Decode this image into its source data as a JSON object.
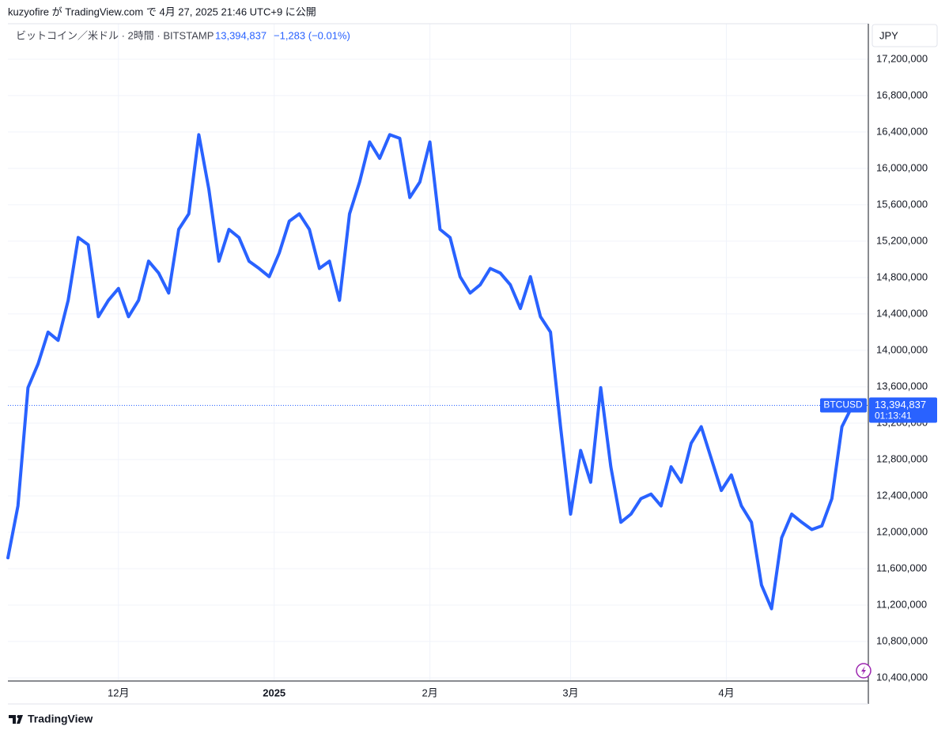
{
  "chart_data": {
    "type": "line",
    "title": "kuzyofire が TradingView.com で 4月 27, 2025 21:46 UTC+9 に公開",
    "subtitle": "ビットコイン／米ドル · 2時間 · BITSTAMP",
    "last_price": {
      "value": 13394837,
      "label": "13,394,837"
    },
    "change": "−1,283 (−0.01%)",
    "countdown": "01:13:41",
    "currency": "JPY",
    "footer": "TradingView",
    "series": [
      {
        "name": "BTCUSD",
        "color": "#2962ff",
        "values": [
          11720000,
          12290000,
          13590000,
          13850000,
          14200000,
          14110000,
          14550000,
          15240000,
          15160000,
          14370000,
          14550000,
          14680000,
          14370000,
          14550000,
          14980000,
          14850000,
          14630000,
          15330000,
          15500000,
          16370000,
          15770000,
          14980000,
          15330000,
          15240000,
          14980000,
          14900000,
          14810000,
          15070000,
          15420000,
          15500000,
          15330000,
          14900000,
          14980000,
          14550000,
          15500000,
          15850000,
          16290000,
          16110000,
          16370000,
          16330000,
          15680000,
          15850000,
          16290000,
          15330000,
          15240000,
          14810000,
          14630000,
          14720000,
          14900000,
          14850000,
          14720000,
          14460000,
          14810000,
          14370000,
          14200000,
          13160000,
          12200000,
          12900000,
          12550000,
          13590000,
          12720000,
          12110000,
          12200000,
          12370000,
          12420000,
          12290000,
          12720000,
          12550000,
          12980000,
          13160000,
          12810000,
          12460000,
          12630000,
          12290000,
          12110000,
          11420000,
          11160000,
          11940000,
          12200000,
          12110000,
          12030000,
          12070000,
          12370000,
          13160000,
          13380000,
          13394837
        ]
      }
    ],
    "xlim": [
      0,
      85
    ],
    "xticks": [
      {
        "value": 11,
        "label": "12月"
      },
      {
        "value": 26.5,
        "label": "2025"
      },
      {
        "value": 42,
        "label": "2月"
      },
      {
        "value": 56,
        "label": "3月"
      },
      {
        "value": 71.5,
        "label": "4月"
      }
    ],
    "ylim": [
      10374000,
      17590000
    ],
    "yticks": [
      {
        "value": 10400000,
        "label": "10,400,000"
      },
      {
        "value": 10800000,
        "label": "10,800,000"
      },
      {
        "value": 11200000,
        "label": "11,200,000"
      },
      {
        "value": 11600000,
        "label": "11,600,000"
      },
      {
        "value": 12000000,
        "label": "12,000,000"
      },
      {
        "value": 12400000,
        "label": "12,400,000"
      },
      {
        "value": 12800000,
        "label": "12,800,000"
      },
      {
        "value": 13200000,
        "label": "13,200,000"
      },
      {
        "value": 13600000,
        "label": "13,600,000"
      },
      {
        "value": 14000000,
        "label": "14,000,000"
      },
      {
        "value": 14400000,
        "label": "14,400,000"
      },
      {
        "value": 14800000,
        "label": "14,800,000"
      },
      {
        "value": 15200000,
        "label": "15,200,000"
      },
      {
        "value": 15600000,
        "label": "15,600,000"
      },
      {
        "value": 16000000,
        "label": "16,000,000"
      },
      {
        "value": 16400000,
        "label": "16,400,000"
      },
      {
        "value": 16800000,
        "label": "16,800,000"
      },
      {
        "value": 17200000,
        "label": "17,200,000"
      }
    ],
    "grid": true
  }
}
